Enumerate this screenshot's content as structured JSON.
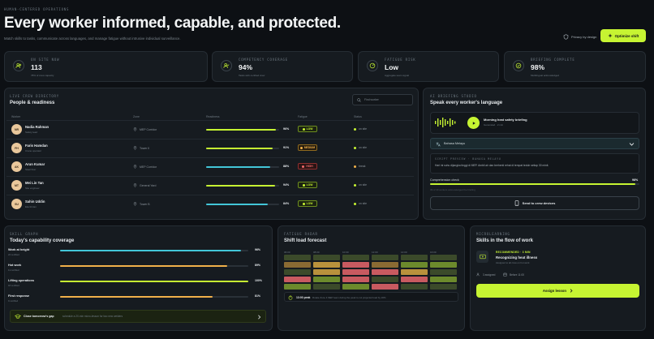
{
  "header": {
    "eyebrow": "HUMAN-CENTERED OPERATIONS",
    "title": "Every worker informed, capable, and protected.",
    "subtitle": "Match skills to tasks, communicate across languages, and manage fatigue without intrusive individual surveillance.",
    "privacy": "Privacy by design",
    "optimize_label": "Optimize shift"
  },
  "stats": [
    {
      "label": "ON SITE NOW",
      "value": "113",
      "note": "78% of crew capacity",
      "icon": "users-icon"
    },
    {
      "label": "COMPETENCY COVERAGE",
      "value": "94%",
      "note": "Tasks with certified crew",
      "icon": "user-check-icon"
    },
    {
      "label": "FATIGUE RISK",
      "value": "Low",
      "note": "Aggregate team signal",
      "icon": "gauge-icon"
    },
    {
      "label": "BRIEFING COMPLETE",
      "value": "98%",
      "note": "Multilingual acknowledged",
      "icon": "check-circle-icon"
    }
  ],
  "directory": {
    "eyebrow": "LIVE CREW DIRECTORY",
    "title": "People & readiness",
    "search_placeholder": "Find worker",
    "columns": [
      "Worker",
      "Zone",
      "Readiness",
      "Fatigue",
      "Status"
    ],
    "rows": [
      {
        "initials": "NR",
        "name": "Nadia Rahman",
        "role": "Safety lead",
        "zone": "MEP Corridor",
        "readiness": 96,
        "readiness_label": "96%",
        "fatigue": "LOW",
        "fatigue_level": "low",
        "status": "on site",
        "status_color": "#c6f432",
        "bar_color": "#c6f432"
      },
      {
        "initials": "FH",
        "name": "Faris Hamdan",
        "role": "Crane operator",
        "zone": "Tower II",
        "readiness": 91,
        "readiness_label": "91%",
        "fatigue": "MEDIUM",
        "fatigue_level": "med",
        "status": "on site",
        "status_color": "#c6f432",
        "bar_color": "#c6f432"
      },
      {
        "initials": "AK",
        "name": "Arun Kumar",
        "role": "Steel fixer",
        "zone": "MEP Corridor",
        "readiness": 88,
        "readiness_label": "88%",
        "fatigue": "HIGH",
        "fatigue_level": "high",
        "status": "break",
        "status_color": "#f0b04a",
        "bar_color": "#43c6d8"
      },
      {
        "initials": "MT",
        "name": "Mei Lin Tan",
        "role": "Site engineer",
        "zone": "General Yard",
        "readiness": 94,
        "readiness_label": "94%",
        "fatigue": "LOW",
        "fatigue_level": "low",
        "status": "on site",
        "status_color": "#c6f432",
        "bar_color": "#c6f432"
      },
      {
        "initials": "SU",
        "name": "Sahin Uddin",
        "role": "Electrician",
        "zone": "Tower B",
        "readiness": 84,
        "readiness_label": "84%",
        "fatigue": "LOW",
        "fatigue_level": "low",
        "status": "on site",
        "status_color": "#c6f432",
        "bar_color": "#43c6d8"
      }
    ]
  },
  "briefing": {
    "eyebrow": "AI BRIEFING STUDIO",
    "title": "Speak every worker's language",
    "audio_title": "Morning heat safety briefing",
    "audio_meta": "Generated · 2 min",
    "language": "Bahasa Melayu",
    "preview_eyebrow": "SCRIPT PREVIEW · BAHASA MELAYU",
    "preview_text": "Hari ini suhu dijangka tinggi di MEP. Ambil air dan berhenti rehat di tempat teduh setiap 30 minit.",
    "comprehension_label": "Comprehension check",
    "comprehension_value": "98%",
    "comprehension_pct": 98,
    "comprehension_note": "39 of 40 workers acknowledged the briefing",
    "send_label": "Send to crew devices"
  },
  "skills": {
    "eyebrow": "SKILL GRAPH",
    "title": "Today's capability coverage",
    "items": [
      {
        "name": "Work at height",
        "count": "24 certified",
        "value": 96,
        "label": "96%",
        "color": "#43c6d8"
      },
      {
        "name": "Hot work",
        "count": "11 certified",
        "value": 89,
        "label": "89%",
        "color": "#f0b04a"
      },
      {
        "name": "Lifting operations",
        "count": "18 certified",
        "value": 100,
        "label": "100%",
        "color": "#c6f432"
      },
      {
        "name": "First response",
        "count": "9 certified",
        "value": 81,
        "label": "81%",
        "color": "#f0b04a"
      }
    ],
    "gap_title": "Close tomorrow's gap",
    "gap_text": "schedule a 20-min micro-lesson for two new welders"
  },
  "fatigue": {
    "eyebrow": "FATIGUE RADAR",
    "title": "Shift load forecast",
    "hours": [
      "06:00",
      "08:00",
      "10:00",
      "12:00",
      "14:00",
      "16:00"
    ],
    "grid": [
      [
        "#3b4a2a",
        "#3b4a2a",
        "#3b4a2a",
        "#3b4a2a",
        "#3b4a2a",
        "#3b4a2a"
      ],
      [
        "#8a6a33",
        "#b9913c",
        "#c85a60",
        "#8a6a33",
        "#6c8a2c",
        "#6c8a2c"
      ],
      [
        "#3b4a2a",
        "#b9913c",
        "#c85a60",
        "#c85a60",
        "#b9913c",
        "#3b4a2a"
      ],
      [
        "#c85a60",
        "#6c8a2c",
        "#c85a60",
        "#3b4a2a",
        "#c85a60",
        "#6c8a2c"
      ],
      [
        "#6c8a2c",
        "#3b4a2a",
        "#6c8a2c",
        "#c85a60",
        "#3b4a2a",
        "#3b4a2a"
      ]
    ],
    "peak_label": "13:00 peak",
    "peak_text": "Rotate Zone 4 MEP team during the peak to cut projected load by 20%"
  },
  "micro": {
    "eyebrow": "MICROLEARNING",
    "title": "Skills in the flow of work",
    "tag": "RECOMMENDED · 3 MIN",
    "lesson": "Recognizing heat illness",
    "lesson_note": "Assigned to all crew on hot work",
    "meta1": "3 assigned",
    "meta2": "Before 11:00",
    "assign_label": "Assign lesson"
  }
}
